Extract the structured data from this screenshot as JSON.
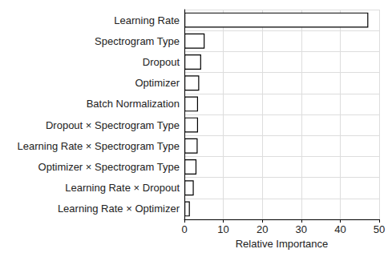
{
  "chart_data": {
    "type": "bar",
    "orientation": "horizontal",
    "xlabel": "Relative Importance",
    "categories": [
      "Learning Rate",
      "Spectrogram Type",
      "Dropout",
      "Optimizer",
      "Batch Normalization",
      "Dropout × Spectrogram Type",
      "Learning Rate × Spectrogram Type",
      "Optimizer × Spectrogram Type",
      "Learning Rate × Dropout",
      "Learning Rate × Optimizer"
    ],
    "values": [
      47.2,
      5.2,
      4.3,
      3.8,
      3.5,
      3.5,
      3.4,
      3.1,
      2.4,
      1.4
    ],
    "color": "#ffffff",
    "xlim": [
      0,
      50
    ],
    "xticks": [
      0,
      10,
      20,
      30,
      40,
      50
    ],
    "grid": true
  }
}
